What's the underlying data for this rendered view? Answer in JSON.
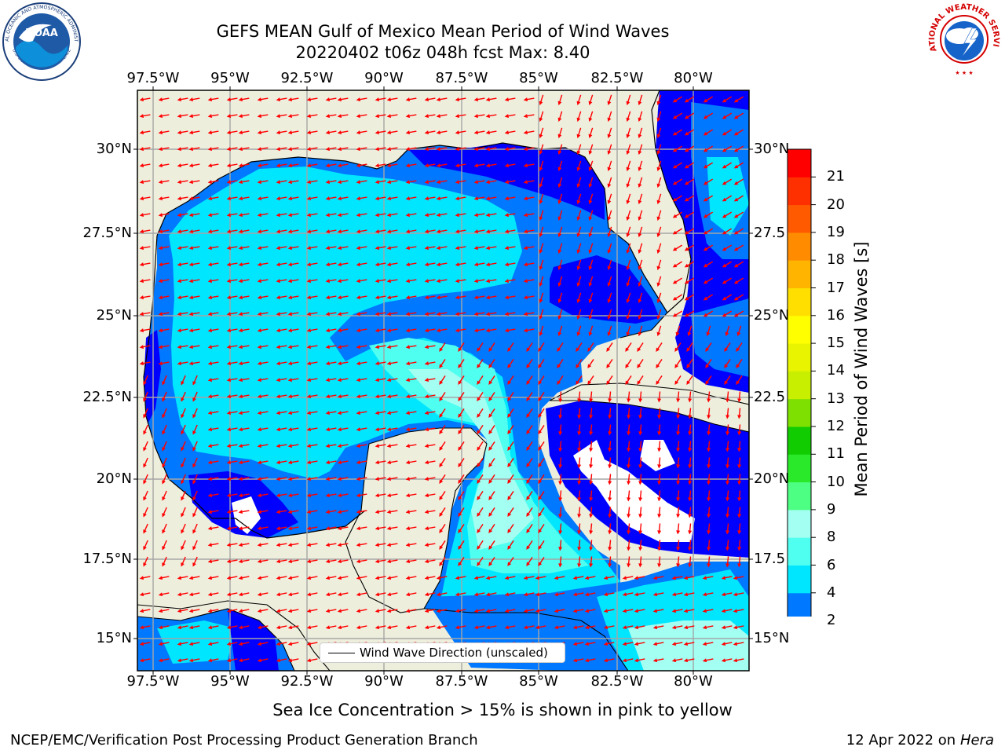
{
  "title": {
    "line1": "GEFS MEAN Gulf of Mexico Mean Period of Wind Waves",
    "line2": "20220402 t06z 048h fcst   Max: 8.40"
  },
  "logos": {
    "left": {
      "text": "NOAA",
      "ring_text": "NATIONAL OCEANIC AND ATMOSPHERIC ADMINISTRATION",
      "ring_text_bottom": "U.S. DEPARTMENT OF COMMERCE"
    },
    "right": {
      "ring_text": "NATIONAL WEATHER SERVICE"
    }
  },
  "map": {
    "lon_range": [
      -98.5,
      -78.5
    ],
    "lat_range": [
      14,
      31.5
    ],
    "lon_ticks": [
      "97.5°W",
      "95°W",
      "92.5°W",
      "90°W",
      "87.5°W",
      "85°W",
      "82.5°W",
      "80°W"
    ],
    "lat_ticks_left": [
      "15°N",
      "17.5°N",
      "20°N",
      "22.5°N",
      "25°N",
      "27.5°N",
      "30°N"
    ],
    "lat_ticks_right": [
      "15°N",
      "17.5°N",
      "20°N",
      "22.5°N",
      "25°N",
      "27.5°N",
      "30°N"
    ],
    "colors": {
      "land": "#eeeedd",
      "grid": "#a6a6a6",
      "arrow": "#ff0000",
      "coast": "#000000"
    }
  },
  "legend": {
    "label": "Wind Wave Direction (unscaled)"
  },
  "colorbar": {
    "label": "Mean Period of Wind Waves [s]",
    "tick_labels": [
      "2",
      "4",
      "6",
      "8",
      "9",
      "10",
      "11",
      "12",
      "13",
      "14",
      "15",
      "16",
      "17",
      "18",
      "19",
      "20",
      "21"
    ],
    "levels": [
      2,
      4,
      6,
      8,
      9,
      10,
      11,
      12,
      13,
      14,
      15,
      16,
      17,
      18,
      19,
      20,
      21
    ],
    "colors": [
      "#0078ff",
      "#00e6ff",
      "#4ffff0",
      "#a2fff2",
      "#4dff82",
      "#2ae82a",
      "#11cc00",
      "#7de000",
      "#c8ee00",
      "#e8f400",
      "#ffff00",
      "#ffdf00",
      "#ffb400",
      "#ff8c00",
      "#ff5a00",
      "#ff3000",
      "#ff0000"
    ],
    "under_color": "#0000ff"
  },
  "note": "Sea Ice Concentration > 15% is shown in pink to yellow",
  "footer": {
    "left": "NCEP/EMC/Verification Post Processing Product Generation Branch",
    "right_date": "12 Apr 2022 on",
    "right_host": "Hera"
  }
}
